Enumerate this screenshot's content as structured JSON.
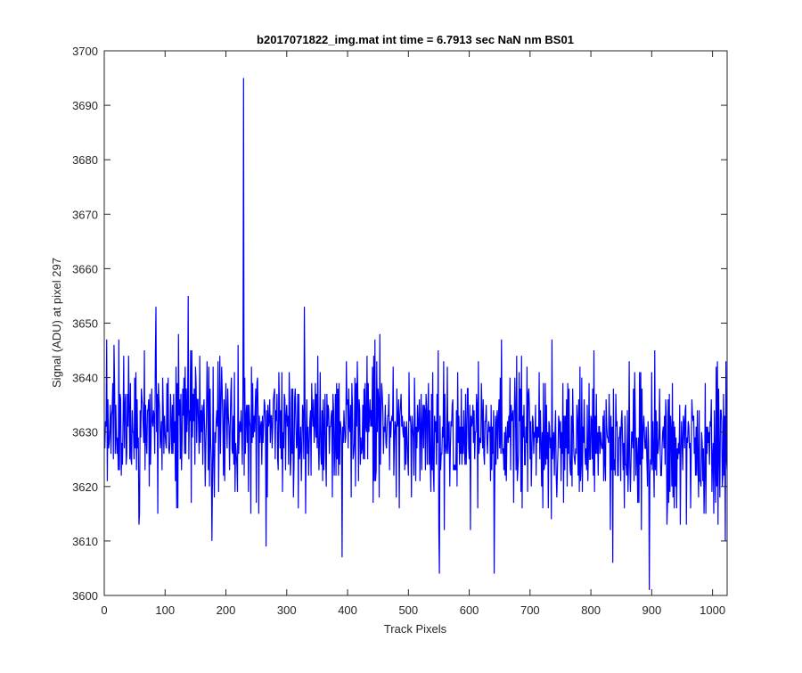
{
  "chart_data": {
    "type": "line",
    "title": "b2017071822_img.mat int time = 6.7913 sec  NaN nm BS01",
    "xlabel": "Track Pixels",
    "ylabel": "Signal (ADU) at pixel 297",
    "xlim": [
      0,
      1024
    ],
    "ylim": [
      3600,
      3700
    ],
    "xticks": [
      0,
      100,
      200,
      300,
      400,
      500,
      600,
      700,
      800,
      900,
      1000
    ],
    "yticks": [
      3600,
      3610,
      3620,
      3630,
      3640,
      3650,
      3660,
      3670,
      3680,
      3690,
      3700
    ],
    "grid": false,
    "series_color": "#0000ff",
    "series": [
      {
        "n_points": 1024,
        "baseline_start": 3632,
        "baseline_mid": 3630,
        "baseline_end": 3627,
        "noise_amplitude": 7,
        "features": [
          {
            "x": 228,
            "y": 3695
          },
          {
            "x": 137,
            "y": 3655
          },
          {
            "x": 84,
            "y": 3653
          },
          {
            "x": 328,
            "y": 3653
          },
          {
            "x": 56,
            "y": 3613
          },
          {
            "x": 176,
            "y": 3610
          },
          {
            "x": 265,
            "y": 3609
          },
          {
            "x": 390,
            "y": 3607
          },
          {
            "x": 550,
            "y": 3604
          },
          {
            "x": 640,
            "y": 3604
          },
          {
            "x": 835,
            "y": 3606
          },
          {
            "x": 895,
            "y": 3601
          },
          {
            "x": 1020,
            "y": 3610
          },
          {
            "x": 1021,
            "y": 3643
          }
        ]
      }
    ]
  }
}
